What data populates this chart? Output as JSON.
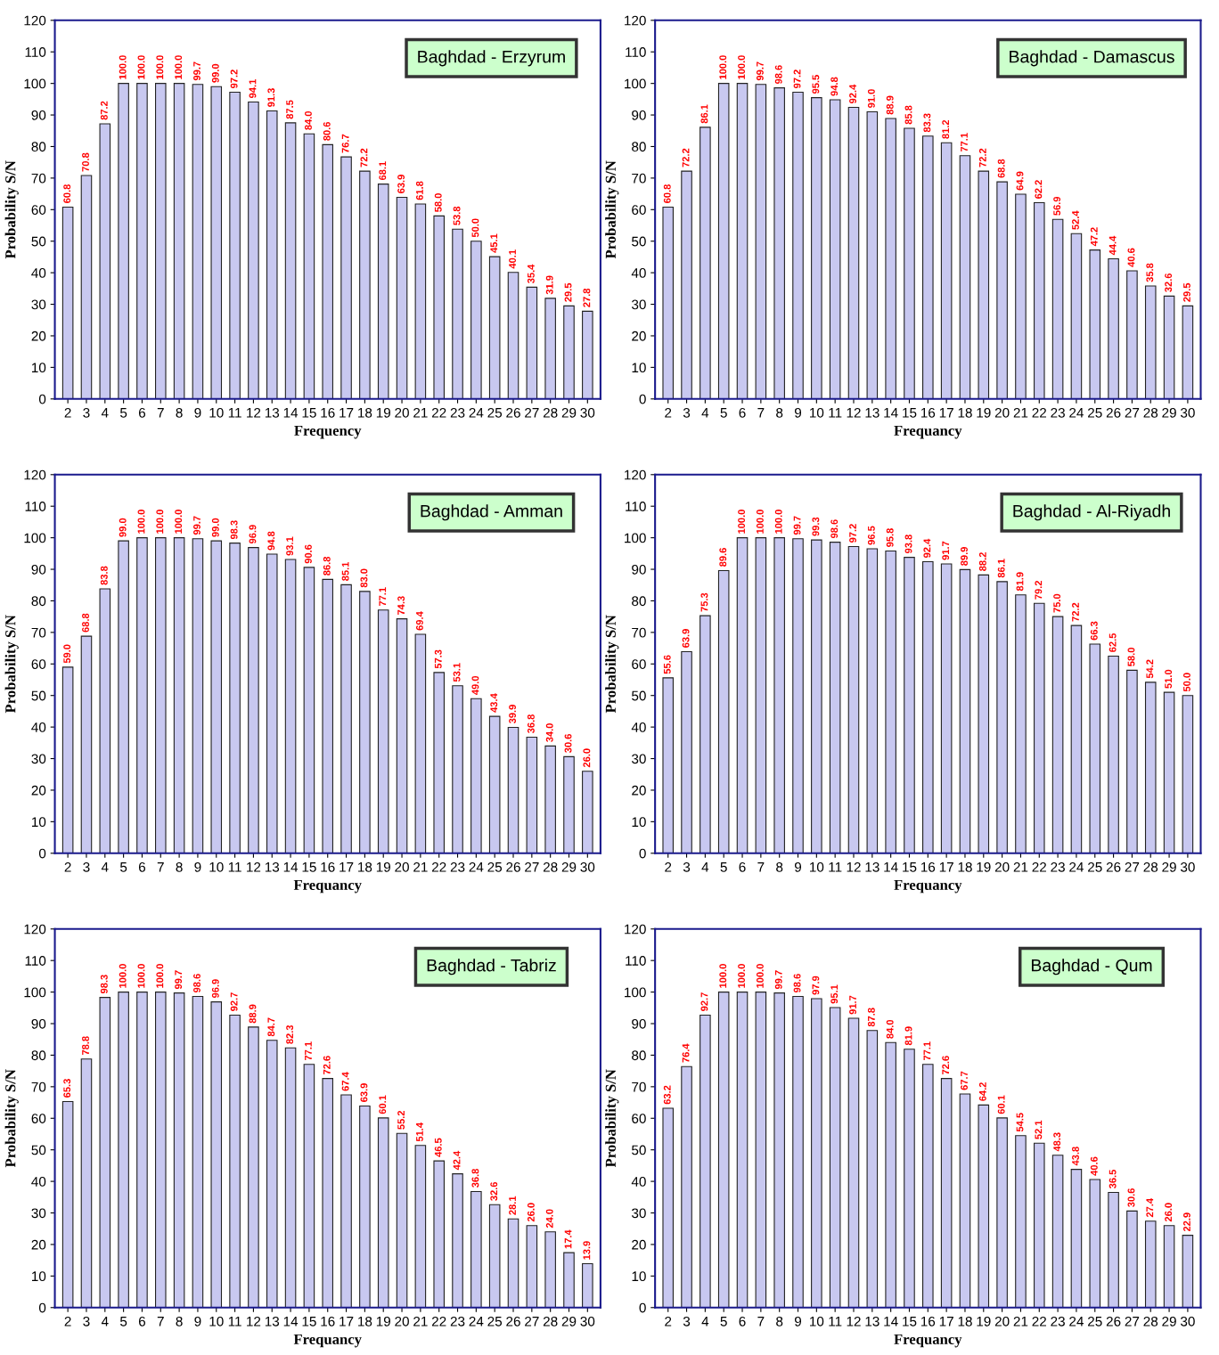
{
  "chart_data": [
    {
      "type": "bar",
      "title": "Baghdad - Erzyrum",
      "xlabel": "Frequency",
      "ylabel": "Probability S/N",
      "categories": [
        "2",
        "3",
        "4",
        "5",
        "6",
        "7",
        "8",
        "9",
        "10",
        "11",
        "12",
        "13",
        "14",
        "15",
        "16",
        "17",
        "18",
        "19",
        "20",
        "21",
        "22",
        "23",
        "24",
        "25",
        "26",
        "27",
        "28",
        "29",
        "30"
      ],
      "color": "#c8c8f0",
      "ylim": [
        0,
        120
      ],
      "yticks": [
        0,
        10,
        20,
        30,
        40,
        50,
        60,
        70,
        80,
        90,
        100,
        110,
        120
      ],
      "values": [
        60.8,
        70.8,
        87.2,
        100,
        100,
        100,
        100,
        99.7,
        99,
        97.2,
        94.1,
        91.3,
        87.5,
        84,
        80.6,
        76.7,
        72.2,
        68.1,
        63.9,
        61.8,
        58,
        53.8,
        50,
        45.1,
        40.1,
        35.4,
        31.9,
        29.5,
        27.8
      ],
      "value_labels": [
        "60.8",
        "70.8",
        "87.2",
        "100.0",
        "100.0",
        "100.0",
        "100.0",
        "99.7",
        "99.0",
        "97.2",
        "94.1",
        "91.3",
        "87.5",
        "84.0",
        "80.6",
        "76.7",
        "72.2",
        "68.1",
        "63.9",
        "61.8",
        "58.0",
        "53.8",
        "50.0",
        "45.1",
        "40.1",
        "35.4",
        "31.9",
        "29.5",
        "27.8"
      ]
    },
    {
      "type": "bar",
      "title": "Baghdad - Damascus",
      "xlabel": "Frequancy",
      "ylabel": "Probability S/N",
      "categories": [
        "2",
        "3",
        "4",
        "5",
        "6",
        "7",
        "8",
        "9",
        "10",
        "11",
        "12",
        "13",
        "14",
        "15",
        "16",
        "17",
        "18",
        "19",
        "20",
        "21",
        "22",
        "23",
        "24",
        "25",
        "26",
        "27",
        "28",
        "29",
        "30"
      ],
      "color": "#c8c8f0",
      "ylim": [
        0,
        120
      ],
      "yticks": [
        0,
        10,
        20,
        30,
        40,
        50,
        60,
        70,
        80,
        90,
        100,
        110,
        120
      ],
      "values": [
        60.8,
        72.2,
        86.1,
        100,
        100,
        99.7,
        98.6,
        97.2,
        95.5,
        94.8,
        92.4,
        91,
        88.9,
        85.8,
        83.3,
        81.2,
        77.1,
        72.2,
        68.8,
        64.9,
        62.2,
        56.9,
        52.4,
        47.2,
        44.4,
        40.6,
        35.8,
        32.6,
        29.5
      ],
      "value_labels": [
        "60.8",
        "72.2",
        "86.1",
        "100.0",
        "100.0",
        "99.7",
        "98.6",
        "97.2",
        "95.5",
        "94.8",
        "92.4",
        "91.0",
        "88.9",
        "85.8",
        "83.3",
        "81.2",
        "77.1",
        "72.2",
        "68.8",
        "64.9",
        "62.2",
        "56.9",
        "52.4",
        "47.2",
        "44.4",
        "40.6",
        "35.8",
        "32.6",
        "29.5"
      ]
    },
    {
      "type": "bar",
      "title": "Baghdad - Amman",
      "xlabel": "Frequancy",
      "ylabel": "Probability S/N",
      "categories": [
        "2",
        "3",
        "4",
        "5",
        "6",
        "7",
        "8",
        "9",
        "10",
        "11",
        "12",
        "13",
        "14",
        "15",
        "16",
        "17",
        "18",
        "19",
        "20",
        "21",
        "22",
        "23",
        "24",
        "25",
        "26",
        "27",
        "28",
        "29",
        "30"
      ],
      "color": "#c8c8f0",
      "ylim": [
        0,
        120
      ],
      "yticks": [
        0,
        10,
        20,
        30,
        40,
        50,
        60,
        70,
        80,
        90,
        100,
        110,
        120
      ],
      "values": [
        59,
        68.8,
        83.8,
        99,
        100,
        100,
        100,
        99.7,
        99,
        98.3,
        96.9,
        94.8,
        93.1,
        90.6,
        86.8,
        85.1,
        83,
        77.1,
        74.3,
        69.4,
        57.3,
        53.1,
        49,
        43.4,
        39.9,
        36.8,
        34,
        30.6,
        26
      ],
      "value_labels": [
        "59.0",
        "68.8",
        "83.8",
        "99.0",
        "100.0",
        "100.0",
        "100.0",
        "99.7",
        "99.0",
        "98.3",
        "96.9",
        "94.8",
        "93.1",
        "90.6",
        "86.8",
        "85.1",
        "83.0",
        "77.1",
        "74.3",
        "69.4",
        "57.3",
        "53.1",
        "49.0",
        "43.4",
        "39.9",
        "36.8",
        "34.0",
        "30.6",
        "26.0"
      ]
    },
    {
      "type": "bar",
      "title": "Baghdad - Al-Riyadh",
      "xlabel": "Frequancy",
      "ylabel": "Probability S/N",
      "categories": [
        "2",
        "3",
        "4",
        "5",
        "6",
        "7",
        "8",
        "9",
        "10",
        "11",
        "12",
        "13",
        "14",
        "15",
        "16",
        "17",
        "18",
        "19",
        "20",
        "21",
        "22",
        "23",
        "24",
        "25",
        "26",
        "27",
        "28",
        "29",
        "30"
      ],
      "color": "#c8c8f0",
      "ylim": [
        0,
        120
      ],
      "yticks": [
        0,
        10,
        20,
        30,
        40,
        50,
        60,
        70,
        80,
        90,
        100,
        110,
        120
      ],
      "values": [
        55.6,
        63.9,
        75.3,
        89.6,
        100,
        100,
        100,
        99.7,
        99.3,
        98.6,
        97.2,
        96.5,
        95.8,
        93.8,
        92.4,
        91.7,
        89.9,
        88.2,
        86.1,
        81.9,
        79.2,
        75,
        72.2,
        66.3,
        62.5,
        58,
        54.2,
        51,
        50
      ],
      "value_labels": [
        "55.6",
        "63.9",
        "75.3",
        "89.6",
        "100.0",
        "100.0",
        "100.0",
        "99.7",
        "99.3",
        "98.6",
        "97.2",
        "96.5",
        "95.8",
        "93.8",
        "92.4",
        "91.7",
        "89.9",
        "88.2",
        "86.1",
        "81.9",
        "79.2",
        "75.0",
        "72.2",
        "66.3",
        "62.5",
        "58.0",
        "54.2",
        "51.0",
        "50.0"
      ]
    },
    {
      "type": "bar",
      "title": "Baghdad - Tabriz",
      "xlabel": "Frequancy",
      "ylabel": "Probability S/N",
      "categories": [
        "2",
        "3",
        "4",
        "5",
        "6",
        "7",
        "8",
        "9",
        "10",
        "11",
        "12",
        "13",
        "14",
        "15",
        "16",
        "17",
        "18",
        "19",
        "20",
        "21",
        "22",
        "23",
        "24",
        "25",
        "26",
        "27",
        "28",
        "29",
        "30"
      ],
      "color": "#c8c8f0",
      "ylim": [
        0,
        120
      ],
      "yticks": [
        0,
        10,
        20,
        30,
        40,
        50,
        60,
        70,
        80,
        90,
        100,
        110,
        120
      ],
      "values": [
        65.3,
        78.8,
        98.3,
        100,
        100,
        100,
        99.7,
        98.6,
        96.9,
        92.7,
        88.9,
        84.7,
        82.3,
        77.1,
        72.6,
        67.4,
        63.9,
        60.1,
        55.2,
        51.4,
        46.5,
        42.4,
        36.8,
        32.6,
        28.1,
        26,
        24,
        17.4,
        13.9
      ],
      "value_labels": [
        "65.3",
        "78.8",
        "98.3",
        "100.0",
        "100.0",
        "100.0",
        "99.7",
        "98.6",
        "96.9",
        "92.7",
        "88.9",
        "84.7",
        "82.3",
        "77.1",
        "72.6",
        "67.4",
        "63.9",
        "60.1",
        "55.2",
        "51.4",
        "46.5",
        "42.4",
        "36.8",
        "32.6",
        "28.1",
        "26.0",
        "24.0",
        "17.4",
        "13.9"
      ]
    },
    {
      "type": "bar",
      "title": "Baghdad - Qum",
      "xlabel": "Frequancy",
      "ylabel": "Probability S/N",
      "categories": [
        "2",
        "3",
        "4",
        "5",
        "6",
        "7",
        "8",
        "9",
        "10",
        "11",
        "12",
        "13",
        "14",
        "15",
        "16",
        "17",
        "18",
        "19",
        "20",
        "21",
        "22",
        "23",
        "24",
        "25",
        "26",
        "27",
        "28",
        "29",
        "30"
      ],
      "color": "#c8c8f0",
      "ylim": [
        0,
        120
      ],
      "yticks": [
        0,
        10,
        20,
        30,
        40,
        50,
        60,
        70,
        80,
        90,
        100,
        110,
        120
      ],
      "values": [
        63.2,
        76.4,
        92.7,
        100,
        100,
        100,
        99.7,
        98.6,
        97.9,
        95.1,
        91.7,
        87.8,
        84,
        81.9,
        77.1,
        72.6,
        67.7,
        64.2,
        60.1,
        54.5,
        52.1,
        48.3,
        43.8,
        40.6,
        36.5,
        30.6,
        27.4,
        26,
        22.9
      ],
      "value_labels": [
        "63.2",
        "76.4",
        "92.7",
        "100.0",
        "100.0",
        "100.0",
        "99.7",
        "98.6",
        "97.9",
        "95.1",
        "91.7",
        "87.8",
        "84.0",
        "81.9",
        "77.1",
        "72.6",
        "67.7",
        "64.2",
        "60.1",
        "54.5",
        "52.1",
        "48.3",
        "43.8",
        "40.6",
        "36.5",
        "30.6",
        "27.4",
        "26.0",
        "22.9"
      ]
    }
  ]
}
